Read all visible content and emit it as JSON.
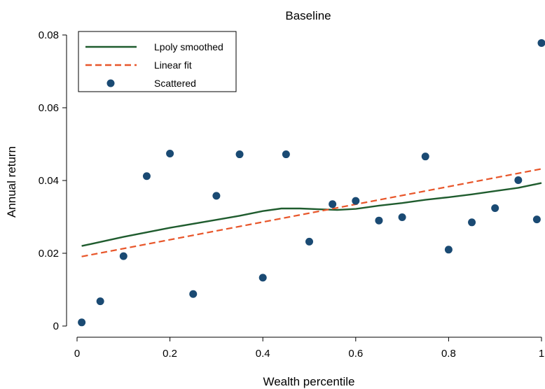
{
  "chart_data": {
    "type": "scatter",
    "title": "Baseline",
    "xlabel": "Wealth percentile",
    "ylabel": "Annual return",
    "xlim": [
      0,
      1
    ],
    "ylim": [
      0,
      0.08
    ],
    "x_ticks": [
      0,
      0.2,
      0.4,
      0.6,
      0.8,
      1
    ],
    "x_tick_labels": [
      "0",
      "0.2",
      "0.4",
      "0.6",
      "0.8",
      "1"
    ],
    "y_ticks": [
      0,
      0.02,
      0.04,
      0.06,
      0.08
    ],
    "y_tick_labels": [
      "0",
      "0.02",
      "0.04",
      "0.06",
      "0.08"
    ],
    "grid": false,
    "legend_position": "top-left",
    "series": [
      {
        "name": "Lpoly smoothed",
        "kind": "line",
        "style": "solid",
        "color": "#1f5c2e",
        "x": [
          0.01,
          0.1,
          0.2,
          0.3,
          0.35,
          0.4,
          0.44,
          0.48,
          0.52,
          0.56,
          0.6,
          0.65,
          0.7,
          0.75,
          0.8,
          0.85,
          0.9,
          0.95,
          1.0
        ],
        "y": [
          0.022,
          0.0245,
          0.027,
          0.0292,
          0.0303,
          0.0316,
          0.0323,
          0.0323,
          0.0321,
          0.0319,
          0.0322,
          0.0331,
          0.0338,
          0.0347,
          0.0354,
          0.0362,
          0.0371,
          0.038,
          0.0393
        ]
      },
      {
        "name": "Linear fit",
        "kind": "line",
        "style": "dashed",
        "color": "#e8562a",
        "x": [
          0.01,
          1.0
        ],
        "y": [
          0.0191,
          0.0432
        ]
      },
      {
        "name": "Scattered",
        "kind": "scatter",
        "color": "#1a4a73",
        "x": [
          0.01,
          0.05,
          0.1,
          0.15,
          0.2,
          0.25,
          0.3,
          0.35,
          0.4,
          0.45,
          0.5,
          0.55,
          0.6,
          0.65,
          0.7,
          0.75,
          0.8,
          0.85,
          0.9,
          0.95,
          0.99,
          1.0
        ],
        "y": [
          0.001,
          0.0068,
          0.0192,
          0.0412,
          0.0474,
          0.0088,
          0.0358,
          0.0472,
          0.0133,
          0.0472,
          0.0232,
          0.0335,
          0.0344,
          0.029,
          0.0299,
          0.0466,
          0.021,
          0.0285,
          0.0324,
          0.0401,
          0.0293,
          0.0778
        ]
      }
    ]
  }
}
